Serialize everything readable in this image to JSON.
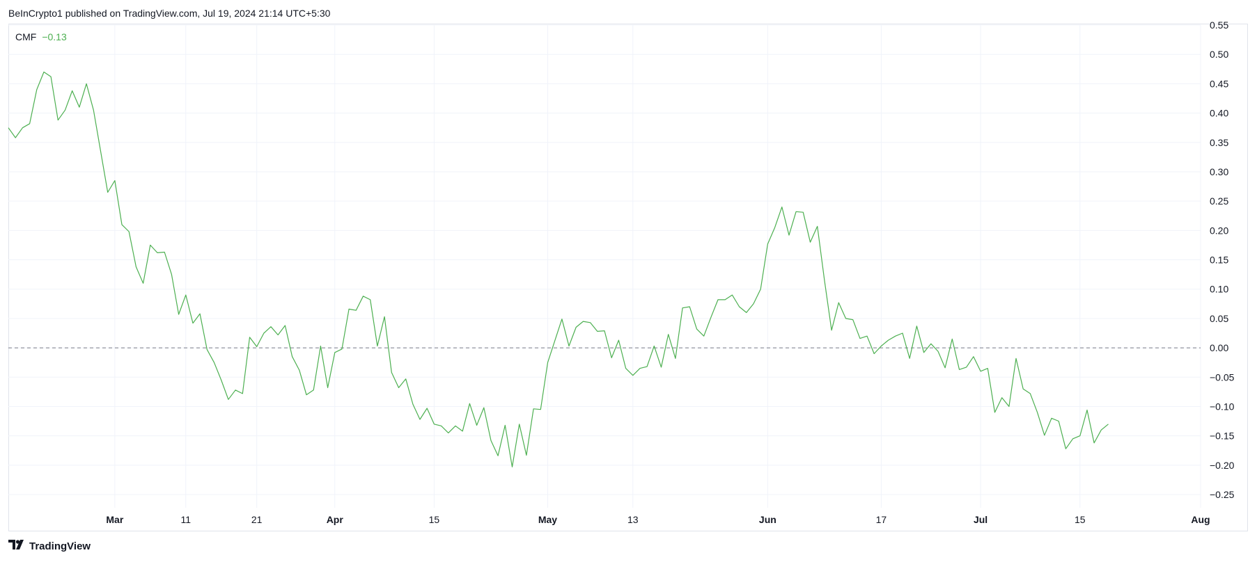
{
  "header": {
    "published_text": "BeInCrypto1 published on TradingView.com, Jul 19, 2024 21:14 UTC+5:30"
  },
  "legend": {
    "indicator": "CMF",
    "value": "−0.13"
  },
  "footer": {
    "brand": "TradingView",
    "logo_icon": "tradingview-logo-icon"
  },
  "colors": {
    "line": "#4caf50",
    "grid": "#f0f3fa",
    "zero_line": "#787b86",
    "legend_value": "#4caf50"
  },
  "chart_data": {
    "type": "line",
    "title": "",
    "xlabel": "",
    "ylabel": "",
    "ylim": [
      -0.25,
      0.55
    ],
    "y_ticks": [
      "0.55",
      "0.50",
      "0.45",
      "0.40",
      "0.35",
      "0.30",
      "0.25",
      "0.20",
      "0.15",
      "0.10",
      "0.05",
      "0.00",
      "−0.05",
      "−0.10",
      "−0.15",
      "−0.20",
      "−0.25"
    ],
    "y_tick_values": [
      0.55,
      0.5,
      0.45,
      0.4,
      0.35,
      0.3,
      0.25,
      0.2,
      0.15,
      0.1,
      0.05,
      0.0,
      -0.05,
      -0.1,
      -0.15,
      -0.2,
      -0.25
    ],
    "x_ticks": [
      {
        "label": "Mar",
        "date": "2024-03-01",
        "bold": true
      },
      {
        "label": "11",
        "date": "2024-03-11",
        "bold": false
      },
      {
        "label": "21",
        "date": "2024-03-21",
        "bold": false
      },
      {
        "label": "Apr",
        "date": "2024-04-01",
        "bold": true
      },
      {
        "label": "15",
        "date": "2024-04-15",
        "bold": false
      },
      {
        "label": "May",
        "date": "2024-05-01",
        "bold": true
      },
      {
        "label": "13",
        "date": "2024-05-13",
        "bold": false
      },
      {
        "label": "Jun",
        "date": "2024-06-01",
        "bold": true
      },
      {
        "label": "17",
        "date": "2024-06-17",
        "bold": false
      },
      {
        "label": "Jul",
        "date": "2024-07-01",
        "bold": true
      },
      {
        "label": "15",
        "date": "2024-07-15",
        "bold": false
      },
      {
        "label": "Aug",
        "date": "2024-08-01",
        "bold": true
      }
    ],
    "xlim": [
      "2024-02-15",
      "2024-08-01"
    ],
    "grid": true,
    "zero_line": true,
    "series": [
      {
        "color": "#4caf50",
        "points": [
          [
            "2024-02-15",
            0.375
          ],
          [
            "2024-02-16",
            0.358
          ],
          [
            "2024-02-17",
            0.375
          ],
          [
            "2024-02-18",
            0.382
          ],
          [
            "2024-02-19",
            0.44
          ],
          [
            "2024-02-20",
            0.47
          ],
          [
            "2024-02-21",
            0.462
          ],
          [
            "2024-02-22",
            0.388
          ],
          [
            "2024-02-23",
            0.405
          ],
          [
            "2024-02-24",
            0.438
          ],
          [
            "2024-02-25",
            0.41
          ],
          [
            "2024-02-26",
            0.45
          ],
          [
            "2024-02-27",
            0.405
          ],
          [
            "2024-02-28",
            0.335
          ],
          [
            "2024-02-29",
            0.265
          ],
          [
            "2024-03-01",
            0.285
          ],
          [
            "2024-03-02",
            0.21
          ],
          [
            "2024-03-03",
            0.198
          ],
          [
            "2024-03-04",
            0.138
          ],
          [
            "2024-03-05",
            0.11
          ],
          [
            "2024-03-06",
            0.175
          ],
          [
            "2024-03-07",
            0.162
          ],
          [
            "2024-03-08",
            0.163
          ],
          [
            "2024-03-09",
            0.125
          ],
          [
            "2024-03-10",
            0.057
          ],
          [
            "2024-03-11",
            0.09
          ],
          [
            "2024-03-12",
            0.042
          ],
          [
            "2024-03-13",
            0.058
          ],
          [
            "2024-03-14",
            -0.003
          ],
          [
            "2024-03-15",
            -0.025
          ],
          [
            "2024-03-16",
            -0.055
          ],
          [
            "2024-03-17",
            -0.088
          ],
          [
            "2024-03-18",
            -0.072
          ],
          [
            "2024-03-19",
            -0.078
          ],
          [
            "2024-03-20",
            0.018
          ],
          [
            "2024-03-21",
            0.002
          ],
          [
            "2024-03-22",
            0.025
          ],
          [
            "2024-03-23",
            0.036
          ],
          [
            "2024-03-24",
            0.022
          ],
          [
            "2024-03-25",
            0.038
          ],
          [
            "2024-03-26",
            -0.015
          ],
          [
            "2024-03-27",
            -0.038
          ],
          [
            "2024-03-28",
            -0.08
          ],
          [
            "2024-03-29",
            -0.072
          ],
          [
            "2024-03-30",
            0.003
          ],
          [
            "2024-03-31",
            -0.068
          ],
          [
            "2024-04-01",
            -0.008
          ],
          [
            "2024-04-02",
            -0.002
          ],
          [
            "2024-04-03",
            0.066
          ],
          [
            "2024-04-04",
            0.064
          ],
          [
            "2024-04-05",
            0.088
          ],
          [
            "2024-04-06",
            0.082
          ],
          [
            "2024-04-07",
            0.003
          ],
          [
            "2024-04-08",
            0.053
          ],
          [
            "2024-04-09",
            -0.042
          ],
          [
            "2024-04-10",
            -0.068
          ],
          [
            "2024-04-11",
            -0.053
          ],
          [
            "2024-04-12",
            -0.096
          ],
          [
            "2024-04-13",
            -0.122
          ],
          [
            "2024-04-14",
            -0.103
          ],
          [
            "2024-04-15",
            -0.13
          ],
          [
            "2024-04-16",
            -0.133
          ],
          [
            "2024-04-17",
            -0.145
          ],
          [
            "2024-04-18",
            -0.133
          ],
          [
            "2024-04-19",
            -0.142
          ],
          [
            "2024-04-20",
            -0.095
          ],
          [
            "2024-04-21",
            -0.132
          ],
          [
            "2024-04-22",
            -0.102
          ],
          [
            "2024-04-23",
            -0.158
          ],
          [
            "2024-04-24",
            -0.184
          ],
          [
            "2024-04-25",
            -0.132
          ],
          [
            "2024-04-26",
            -0.203
          ],
          [
            "2024-04-27",
            -0.13
          ],
          [
            "2024-04-28",
            -0.183
          ],
          [
            "2024-04-29",
            -0.104
          ],
          [
            "2024-04-30",
            -0.105
          ],
          [
            "2024-05-01",
            -0.025
          ],
          [
            "2024-05-02",
            0.012
          ],
          [
            "2024-05-03",
            0.049
          ],
          [
            "2024-05-04",
            0.003
          ],
          [
            "2024-05-05",
            0.035
          ],
          [
            "2024-05-06",
            0.045
          ],
          [
            "2024-05-07",
            0.043
          ],
          [
            "2024-05-08",
            0.028
          ],
          [
            "2024-05-09",
            0.029
          ],
          [
            "2024-05-10",
            -0.017
          ],
          [
            "2024-05-11",
            0.013
          ],
          [
            "2024-05-12",
            -0.035
          ],
          [
            "2024-05-13",
            -0.047
          ],
          [
            "2024-05-14",
            -0.035
          ],
          [
            "2024-05-15",
            -0.032
          ],
          [
            "2024-05-16",
            0.003
          ],
          [
            "2024-05-17",
            -0.033
          ],
          [
            "2024-05-18",
            0.023
          ],
          [
            "2024-05-19",
            -0.018
          ],
          [
            "2024-05-20",
            0.068
          ],
          [
            "2024-05-21",
            0.07
          ],
          [
            "2024-05-22",
            0.032
          ],
          [
            "2024-05-23",
            0.02
          ],
          [
            "2024-05-24",
            0.052
          ],
          [
            "2024-05-25",
            0.082
          ],
          [
            "2024-05-26",
            0.082
          ],
          [
            "2024-05-27",
            0.09
          ],
          [
            "2024-05-28",
            0.07
          ],
          [
            "2024-05-29",
            0.06
          ],
          [
            "2024-05-30",
            0.075
          ],
          [
            "2024-05-31",
            0.1
          ],
          [
            "2024-06-01",
            0.177
          ],
          [
            "2024-06-02",
            0.205
          ],
          [
            "2024-06-03",
            0.24
          ],
          [
            "2024-06-04",
            0.192
          ],
          [
            "2024-06-05",
            0.232
          ],
          [
            "2024-06-06",
            0.231
          ],
          [
            "2024-06-07",
            0.18
          ],
          [
            "2024-06-08",
            0.207
          ],
          [
            "2024-06-09",
            0.115
          ],
          [
            "2024-06-10",
            0.03
          ],
          [
            "2024-06-11",
            0.077
          ],
          [
            "2024-06-12",
            0.05
          ],
          [
            "2024-06-13",
            0.048
          ],
          [
            "2024-06-14",
            0.016
          ],
          [
            "2024-06-15",
            0.02
          ],
          [
            "2024-06-16",
            -0.01
          ],
          [
            "2024-06-17",
            0.003
          ],
          [
            "2024-06-18",
            0.013
          ],
          [
            "2024-06-19",
            0.02
          ],
          [
            "2024-06-20",
            0.025
          ],
          [
            "2024-06-21",
            -0.018
          ],
          [
            "2024-06-22",
            0.037
          ],
          [
            "2024-06-23",
            -0.008
          ],
          [
            "2024-06-24",
            0.007
          ],
          [
            "2024-06-25",
            -0.006
          ],
          [
            "2024-06-26",
            -0.034
          ],
          [
            "2024-06-27",
            0.015
          ],
          [
            "2024-06-28",
            -0.037
          ],
          [
            "2024-06-29",
            -0.033
          ],
          [
            "2024-06-30",
            -0.015
          ],
          [
            "2024-07-01",
            -0.04
          ],
          [
            "2024-07-02",
            -0.035
          ],
          [
            "2024-07-03",
            -0.11
          ],
          [
            "2024-07-04",
            -0.085
          ],
          [
            "2024-07-05",
            -0.1
          ],
          [
            "2024-07-06",
            -0.018
          ],
          [
            "2024-07-07",
            -0.07
          ],
          [
            "2024-07-08",
            -0.078
          ],
          [
            "2024-07-09",
            -0.11
          ],
          [
            "2024-07-10",
            -0.149
          ],
          [
            "2024-07-11",
            -0.12
          ],
          [
            "2024-07-12",
            -0.125
          ],
          [
            "2024-07-13",
            -0.172
          ],
          [
            "2024-07-14",
            -0.155
          ],
          [
            "2024-07-15",
            -0.15
          ],
          [
            "2024-07-16",
            -0.106
          ],
          [
            "2024-07-17",
            -0.162
          ],
          [
            "2024-07-18",
            -0.14
          ],
          [
            "2024-07-19",
            -0.13
          ]
        ]
      }
    ]
  }
}
